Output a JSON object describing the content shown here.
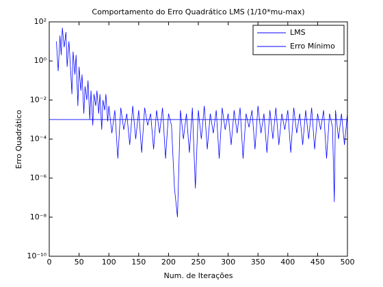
{
  "chart_data": {
    "type": "line",
    "title": "Comportamento do Erro Quadrático LMS (1/10*mu-max)",
    "xlabel": "Num. de Iterações",
    "ylabel": "Erro Quadrático",
    "log_y": true,
    "legend": "upper right",
    "xlim": [
      0,
      500
    ],
    "xticks": [
      0,
      50,
      100,
      150,
      200,
      250,
      300,
      350,
      400,
      450,
      500
    ],
    "ylim": [
      1e-10,
      100
    ],
    "yticks": [
      {
        "value": 1e-10,
        "label": "10⁻¹⁰"
      },
      {
        "value": 1e-08,
        "label": "10⁻⁸"
      },
      {
        "value": 1e-06,
        "label": "10⁻⁶"
      },
      {
        "value": 0.0001,
        "label": "10⁻⁴"
      },
      {
        "value": 0.01,
        "label": "10⁻²"
      },
      {
        "value": 1,
        "label": "10⁰"
      },
      {
        "value": 100,
        "label": "10²"
      }
    ],
    "series": [
      {
        "name": "LMS",
        "color": "#0000ff",
        "x": [
          12,
          15,
          18,
          20,
          22,
          25,
          28,
          30,
          33,
          35,
          38,
          40,
          43,
          45,
          48,
          50,
          53,
          55,
          58,
          60,
          63,
          65,
          68,
          70,
          73,
          75,
          78,
          80,
          83,
          85,
          88,
          90,
          93,
          95,
          98,
          100,
          105,
          110,
          115,
          120,
          125,
          130,
          135,
          140,
          145,
          150,
          155,
          160,
          165,
          170,
          175,
          180,
          185,
          190,
          195,
          200,
          205,
          210,
          215,
          220,
          225,
          230,
          235,
          240,
          245,
          250,
          255,
          260,
          265,
          270,
          275,
          280,
          285,
          290,
          295,
          300,
          305,
          310,
          315,
          320,
          325,
          330,
          335,
          340,
          345,
          350,
          355,
          360,
          365,
          370,
          375,
          380,
          385,
          390,
          395,
          400,
          405,
          410,
          415,
          420,
          425,
          430,
          435,
          440,
          445,
          450,
          455,
          460,
          465,
          470,
          475,
          478,
          480,
          485,
          490,
          495,
          500
        ],
        "values": [
          10,
          0.3,
          20,
          2,
          50,
          5,
          30,
          0.5,
          10,
          1,
          0.02,
          3,
          0.2,
          2,
          0.005,
          0.5,
          0.03,
          0.2,
          0.002,
          0.05,
          0.01,
          0.1,
          0.001,
          0.03,
          0.0005,
          0.02,
          0.005,
          0.03,
          0.002,
          0.02,
          0.0003,
          0.01,
          0.003,
          0.02,
          0.0008,
          0.005,
          0.0002,
          0.003,
          1e-05,
          0.004,
          0.0003,
          0.002,
          5e-05,
          0.005,
          0.0001,
          0.003,
          2e-05,
          0.004,
          0.0005,
          0.002,
          3e-05,
          0.003,
          0.0002,
          0.004,
          1e-05,
          0.002,
          0.0005,
          3e-07,
          1e-08,
          0.003,
          0.0001,
          0.002,
          2e-05,
          0.004,
          3e-07,
          0.003,
          0.0001,
          0.005,
          3e-05,
          0.002,
          0.0002,
          0.003,
          1e-05,
          0.004,
          0.0003,
          0.002,
          5e-05,
          0.003,
          0.0002,
          0.004,
          1e-05,
          0.002,
          0.0004,
          0.003,
          3e-05,
          0.005,
          0.0002,
          0.002,
          2e-05,
          0.003,
          0.0001,
          0.004,
          5e-05,
          0.002,
          0.0003,
          0.003,
          2e-05,
          0.004,
          0.0002,
          0.002,
          5e-05,
          0.003,
          0.0001,
          0.004,
          3e-05,
          0.002,
          0.0003,
          0.003,
          1e-05,
          0.002,
          0.0004,
          6e-08,
          0.003,
          0.0001,
          0.002,
          5e-05,
          0.002
        ]
      },
      {
        "name": "Erro Mínimo",
        "color": "#0000ff",
        "x": [
          0,
          500
        ],
        "values": [
          0.001,
          0.001
        ]
      }
    ]
  }
}
